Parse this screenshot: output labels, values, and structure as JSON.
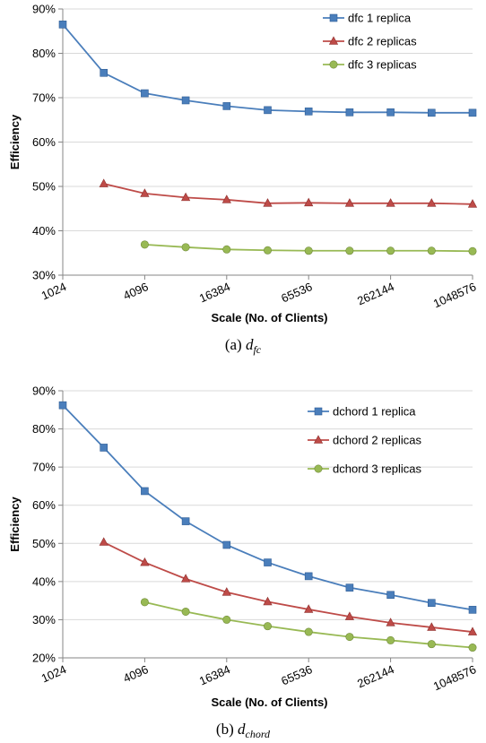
{
  "chart_data": [
    {
      "type": "line",
      "caption": "(a)",
      "caption_symbol": "d",
      "caption_subscript": "fc",
      "xlabel": "Scale (No. of Clients)",
      "ylabel": "Efficiency",
      "ylim": [
        0.3,
        0.9
      ],
      "yticks": [
        "30%",
        "40%",
        "50%",
        "60%",
        "70%",
        "80%",
        "90%"
      ],
      "xtick_labels": [
        "1024",
        "4096",
        "16384",
        "65536",
        "262144",
        "1048576"
      ],
      "x_log2_range": [
        10,
        20
      ],
      "grid": true,
      "legend_position": "top-right",
      "series": [
        {
          "name": "dfc 1 replica",
          "color": "#4a7ebb",
          "marker": "square",
          "x": [
            1024,
            2048,
            4096,
            8192,
            16384,
            32768,
            65536,
            131072,
            262144,
            524288,
            1048576
          ],
          "y": [
            0.865,
            0.756,
            0.71,
            0.694,
            0.681,
            0.672,
            0.669,
            0.667,
            0.667,
            0.666,
            0.666
          ]
        },
        {
          "name": "dfc 2 replicas",
          "color": "#be4b48",
          "marker": "triangle",
          "x": [
            2048,
            4096,
            8192,
            16384,
            32768,
            65536,
            131072,
            262144,
            524288,
            1048576
          ],
          "y": [
            0.506,
            0.484,
            0.475,
            0.47,
            0.462,
            0.463,
            0.462,
            0.462,
            0.462,
            0.46
          ]
        },
        {
          "name": "dfc 3 replicas",
          "color": "#98b954",
          "marker": "circle",
          "x": [
            4096,
            8192,
            16384,
            32768,
            65536,
            131072,
            262144,
            524288,
            1048576
          ],
          "y": [
            0.369,
            0.363,
            0.358,
            0.356,
            0.355,
            0.355,
            0.355,
            0.355,
            0.354
          ]
        }
      ]
    },
    {
      "type": "line",
      "caption": "(b)",
      "caption_symbol": "d",
      "caption_subscript": "chord",
      "xlabel": "Scale (No. of Clients)",
      "ylabel": "Efficiency",
      "ylim": [
        0.2,
        0.9
      ],
      "yticks": [
        "20%",
        "30%",
        "40%",
        "50%",
        "60%",
        "70%",
        "80%",
        "90%"
      ],
      "xtick_labels": [
        "1024",
        "4096",
        "16384",
        "65536",
        "262144",
        "1048576"
      ],
      "x_log2_range": [
        10,
        20
      ],
      "grid": true,
      "legend_position": "top-right",
      "series": [
        {
          "name": "dchord 1 replica",
          "color": "#4a7ebb",
          "marker": "square",
          "x": [
            1024,
            2048,
            4096,
            8192,
            16384,
            32768,
            65536,
            131072,
            262144,
            524288,
            1048576
          ],
          "y": [
            0.862,
            0.751,
            0.637,
            0.558,
            0.496,
            0.45,
            0.414,
            0.384,
            0.365,
            0.344,
            0.326
          ]
        },
        {
          "name": "dchord 2 replicas",
          "color": "#be4b48",
          "marker": "triangle",
          "x": [
            2048,
            4096,
            8192,
            16384,
            32768,
            65536,
            131072,
            262144,
            524288,
            1048576
          ],
          "y": [
            0.503,
            0.45,
            0.407,
            0.372,
            0.347,
            0.327,
            0.308,
            0.292,
            0.28,
            0.268
          ]
        },
        {
          "name": "dchord 3 replicas",
          "color": "#98b954",
          "marker": "circle",
          "x": [
            4096,
            8192,
            16384,
            32768,
            65536,
            131072,
            262144,
            524288,
            1048576
          ],
          "y": [
            0.346,
            0.321,
            0.3,
            0.283,
            0.268,
            0.255,
            0.246,
            0.236,
            0.227
          ]
        }
      ]
    }
  ]
}
